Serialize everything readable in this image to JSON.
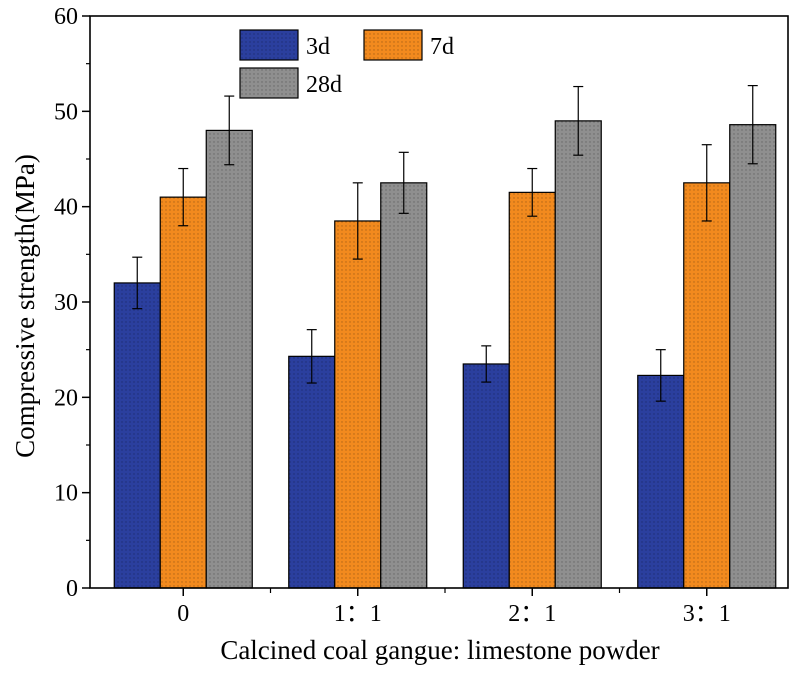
{
  "chart_data": {
    "type": "bar",
    "title": "",
    "xlabel": "Calcined coal gangue: limestone powder",
    "ylabel": "Compressive strength(MPa)",
    "ylim": [
      0,
      60
    ],
    "yticks": [
      0,
      10,
      20,
      30,
      40,
      50,
      60
    ],
    "categories": [
      "0",
      "1：1",
      "2：1",
      "3：1"
    ],
    "series": [
      {
        "name": "3d",
        "color": "#2b3f9e",
        "values": [
          32.0,
          24.3,
          23.5,
          22.3
        ],
        "errors": [
          2.7,
          2.8,
          1.9,
          2.7
        ]
      },
      {
        "name": "7d",
        "color": "#f28a1e",
        "values": [
          41.0,
          38.5,
          41.5,
          42.5
        ],
        "errors": [
          3.0,
          4.0,
          2.5,
          4.0
        ]
      },
      {
        "name": "28d",
        "color": "#8f8f8f",
        "values": [
          48.0,
          42.5,
          49.0,
          48.6
        ],
        "errors": [
          3.6,
          3.2,
          3.6,
          4.1
        ]
      }
    ],
    "legend_position": "top-left",
    "grid": false
  }
}
